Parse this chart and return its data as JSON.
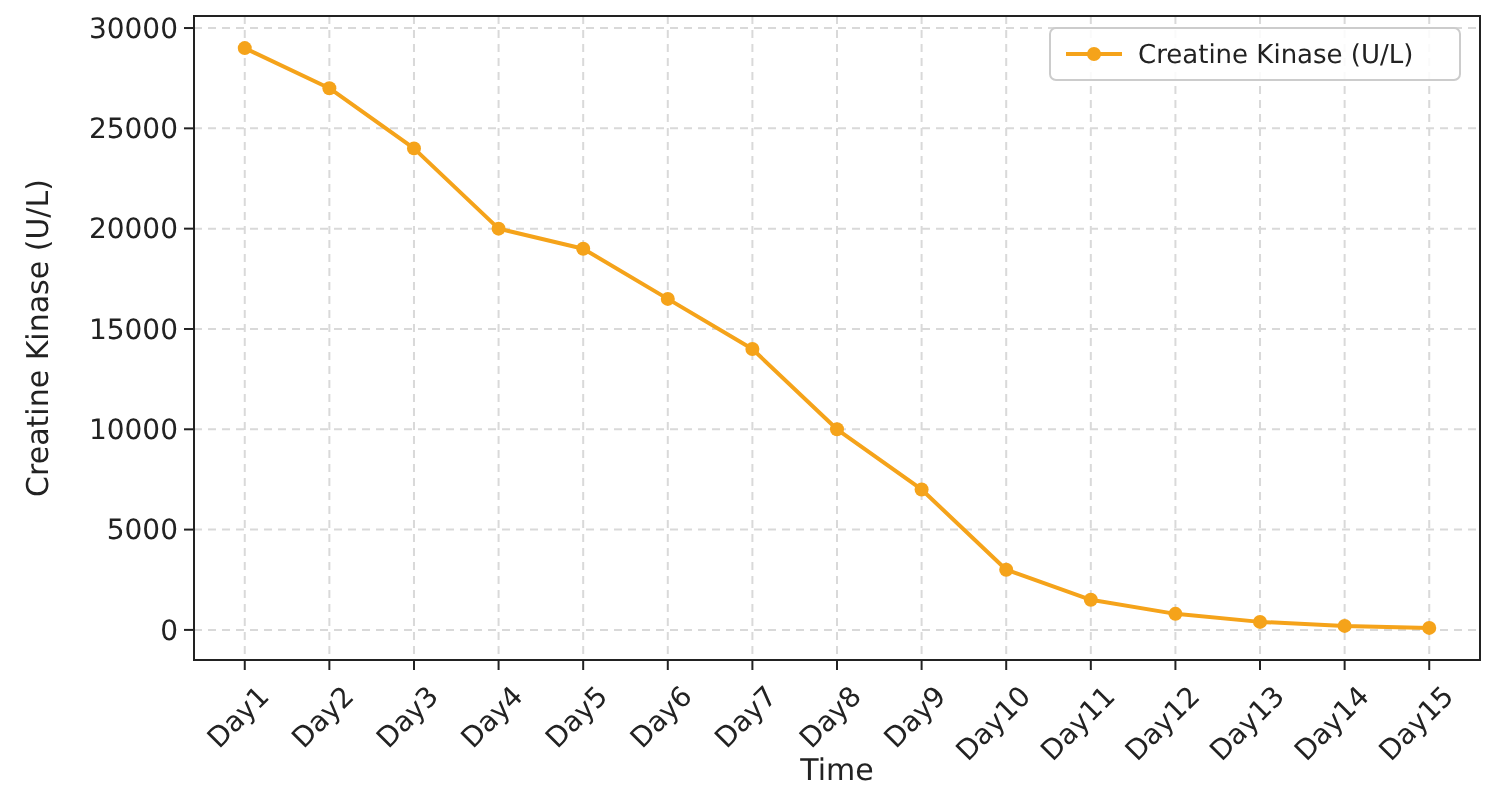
{
  "chart_data": {
    "type": "line",
    "xlabel": "Time",
    "ylabel": "Creatine Kinase (U/L)",
    "categories": [
      "Day1",
      "Day2",
      "Day3",
      "Day4",
      "Day5",
      "Day6",
      "Day7",
      "Day8",
      "Day9",
      "Day10",
      "Day11",
      "Day12",
      "Day13",
      "Day14",
      "Day15"
    ],
    "series": [
      {
        "name": "Creatine Kinase (U/L)",
        "color": "#f5a31a",
        "values": [
          29000,
          27000,
          24000,
          20000,
          19000,
          16500,
          14000,
          10000,
          7000,
          3000,
          1500,
          800,
          400,
          200,
          100
        ]
      }
    ],
    "ylim": [
      -1500,
      30600
    ],
    "yticks": [
      0,
      5000,
      10000,
      15000,
      20000,
      25000,
      30000
    ],
    "grid": true,
    "legend": "top right",
    "marker": "circle",
    "line_style": "solid"
  }
}
